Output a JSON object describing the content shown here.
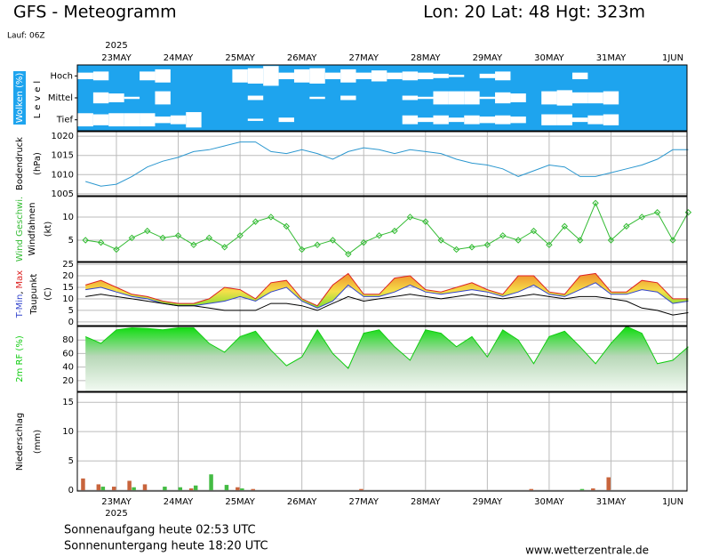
{
  "header": {
    "title": "GFS - Meteogramm",
    "location": "Lon: 20 Lat: 48 Hgt: 323m",
    "run": "Lauf: 06Z"
  },
  "time_axis": {
    "year": "2025",
    "categories": [
      null,
      null,
      "23MAY",
      null,
      null,
      null,
      "24MAY",
      null,
      null,
      null,
      "25MAY",
      null,
      null,
      null,
      "26MAY",
      null,
      null,
      null,
      "27MAY",
      null,
      null,
      null,
      "28MAY",
      null,
      null,
      null,
      "29MAY",
      null,
      null,
      null,
      "30MAY",
      null,
      null,
      null,
      "31MAY",
      null,
      null,
      null,
      "1JUN",
      null
    ]
  },
  "chart_data": [
    {
      "type": "cloud",
      "label": "Wolken (%)",
      "ylabel": [
        "Level"
      ],
      "background": "#1ea4ee",
      "color": "#ffffff",
      "series": [
        {
          "name": "Hoch",
          "values": [
            30,
            40,
            0,
            0,
            40,
            60,
            0,
            0,
            0,
            0,
            60,
            70,
            90,
            30,
            60,
            70,
            30,
            60,
            30,
            50,
            30,
            40,
            30,
            20,
            10,
            0,
            20,
            40,
            0,
            0,
            0,
            0,
            30,
            0,
            0,
            0,
            0,
            0,
            0,
            0
          ]
        },
        {
          "name": "Mittel",
          "values": [
            0,
            50,
            40,
            10,
            0,
            60,
            0,
            0,
            0,
            0,
            0,
            20,
            0,
            0,
            0,
            10,
            0,
            20,
            0,
            0,
            0,
            20,
            10,
            60,
            60,
            60,
            10,
            50,
            40,
            0,
            60,
            70,
            50,
            50,
            60,
            0,
            0,
            0,
            0,
            0
          ]
        },
        {
          "name": "Tief",
          "values": [
            60,
            50,
            60,
            60,
            60,
            30,
            40,
            70,
            0,
            0,
            0,
            10,
            0,
            20,
            0,
            0,
            0,
            0,
            0,
            0,
            0,
            40,
            20,
            40,
            20,
            40,
            30,
            40,
            30,
            0,
            50,
            50,
            20,
            40,
            50,
            0,
            0,
            0,
            0,
            0
          ]
        }
      ]
    },
    {
      "type": "line",
      "ylabel": [
        "Bodendruck",
        "(hPa)"
      ],
      "ylim": [
        1004.5,
        1021.2
      ],
      "yticks": [
        1005,
        1010,
        1015,
        1020
      ],
      "grid": true,
      "series": [
        {
          "color": "#2b97cf",
          "values": [
            1008.2,
            1007,
            1007.5,
            1009.5,
            1012,
            1013.5,
            1014.5,
            1016,
            1016.5,
            1017.5,
            1018.5,
            1018.5,
            1016,
            1015.5,
            1016.5,
            1015.5,
            1014,
            1016,
            1017,
            1016.5,
            1015.5,
            1016.5,
            1016,
            1015.5,
            1014,
            1013,
            1012.5,
            1011.5,
            1009.5,
            1011,
            1012.5,
            1012,
            1009.5,
            1009.5,
            1010.5,
            1011.5,
            1012.5,
            1014,
            1016.5,
            1016.5
          ]
        }
      ]
    },
    {
      "type": "line",
      "ylabel": [
        "Windfahnen",
        "(kt)"
      ],
      "ylim": [
        0.4,
        14.4
      ],
      "yticks": [
        5,
        10
      ],
      "grid": true,
      "markers": true,
      "series": [
        {
          "name": "Wind Geschwi.",
          "color": "#33bb33",
          "values": [
            5,
            4.5,
            3,
            5.5,
            7,
            5.5,
            6,
            4,
            5.5,
            3.5,
            6,
            9,
            10,
            8,
            3,
            4,
            5,
            2,
            4.5,
            6,
            7,
            10,
            9,
            5,
            3,
            3.5,
            4,
            6,
            5,
            7,
            4,
            8,
            5,
            13,
            5,
            8,
            10,
            11,
            5,
            11
          ]
        }
      ]
    },
    {
      "type": "range",
      "ylabel": [
        "Taupunkt",
        "(C)"
      ],
      "separator": ",",
      "ylim": [
        -1.6,
        25.8
      ],
      "yticks": [
        0,
        5,
        10,
        15,
        20,
        25
      ],
      "grid": true,
      "series": [
        {
          "name": "T-Min",
          "color": "#3344cc",
          "values": [
            14,
            15,
            13,
            11,
            10,
            8,
            7,
            7,
            8,
            9,
            11,
            9,
            13,
            15,
            9,
            6,
            9,
            16,
            11,
            11,
            13,
            16,
            13,
            12,
            13,
            14,
            13,
            11,
            13,
            16,
            12,
            11,
            14,
            17,
            12,
            12,
            14,
            13,
            8,
            9
          ]
        },
        {
          "name": "Max",
          "color": "#dd2222",
          "values": [
            16,
            18,
            15,
            12,
            11,
            9,
            8,
            8,
            10,
            15,
            14,
            10,
            17,
            18,
            10,
            7,
            16,
            21,
            12,
            12,
            19,
            20,
            14,
            13,
            15,
            17,
            14,
            12,
            20,
            20,
            13,
            12,
            20,
            21,
            13,
            13,
            18,
            17,
            10,
            10
          ]
        },
        {
          "name": "Taupunkt",
          "color": "#000000",
          "values": [
            11,
            12,
            11,
            10,
            9,
            8,
            7,
            7,
            6,
            5,
            5,
            5,
            8,
            8,
            7,
            5,
            8,
            11,
            9,
            10,
            11,
            12,
            11,
            10,
            11,
            12,
            11,
            10,
            11,
            12,
            11,
            10,
            11,
            11,
            10,
            9,
            6,
            5,
            3,
            4
          ]
        }
      ]
    },
    {
      "type": "area",
      "ylim": [
        4,
        100
      ],
      "yticks": [
        20,
        40,
        60,
        80
      ],
      "grid": true,
      "series": [
        {
          "name": "2m RF (%)",
          "color": "#11cc11",
          "values": [
            85,
            75,
            95,
            98,
            97,
            95,
            98,
            98,
            75,
            62,
            85,
            93,
            65,
            42,
            55,
            95,
            60,
            38,
            90,
            95,
            70,
            50,
            95,
            90,
            70,
            85,
            55,
            95,
            80,
            45,
            85,
            93,
            70,
            45,
            75,
            100,
            90,
            45,
            50,
            70
          ]
        }
      ]
    },
    {
      "type": "bar",
      "ylabel": [
        "Niederschlag",
        "(mm)"
      ],
      "ylim": [
        -0.15,
        16.7
      ],
      "yticks": [
        0,
        5,
        10,
        15
      ],
      "grid": true,
      "series": [
        {
          "color": "#c8643c",
          "values": [
            2,
            1,
            0.6,
            1.6,
            1,
            0,
            0,
            0.3,
            0,
            0,
            0.5,
            0.2,
            0,
            0,
            0,
            0,
            0,
            0,
            0.2,
            0,
            0,
            0,
            0,
            0,
            0,
            0,
            0,
            0,
            0,
            0.2,
            0,
            0,
            0,
            0.3,
            2.2,
            0,
            0,
            0,
            0,
            0
          ]
        },
        {
          "color": "#44bb44",
          "values": [
            0,
            0.6,
            0,
            0.5,
            0,
            0.6,
            0.5,
            0.8,
            2.7,
            0.9,
            0.3,
            0,
            0,
            0,
            0,
            0,
            0,
            0,
            0,
            0,
            0,
            0,
            0,
            0,
            0,
            0,
            0,
            0,
            0,
            0,
            0,
            0,
            0.2,
            0,
            0,
            0,
            0,
            0,
            0,
            0
          ]
        }
      ]
    }
  ],
  "footer": {
    "sunrise": "Sonnenaufgang heute 02:53 UTC",
    "sunset": "Sonnenuntergang heute 18:20 UTC",
    "source": "www.wetterzentrale.de"
  }
}
